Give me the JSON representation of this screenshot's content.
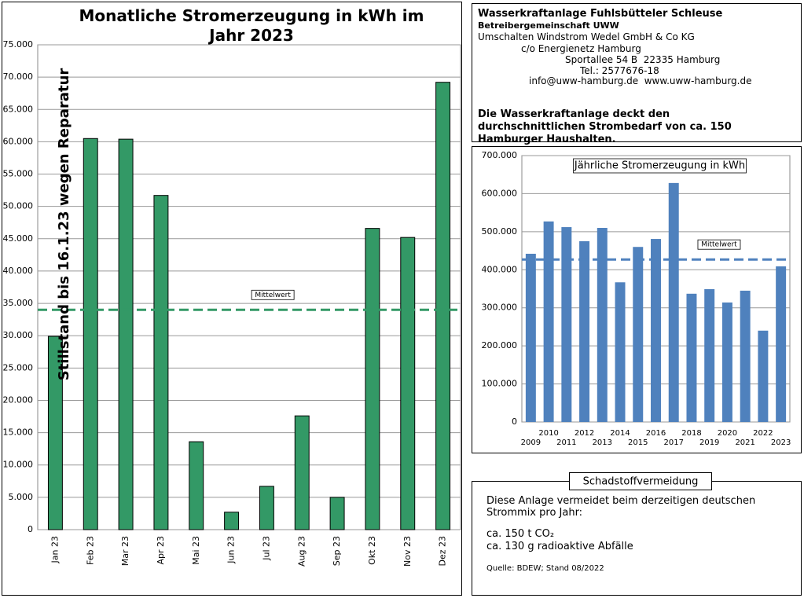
{
  "chart_data": [
    {
      "type": "bar",
      "title": "Monatliche Stromerzeugung in kWh im Jahr 2023",
      "categories": [
        "Jan 23",
        "Feb 23",
        "Mar 23",
        "Apr 23",
        "Mai 23",
        "Jun 23",
        "Jul 23",
        "Aug 23",
        "Sep 23",
        "Okt 23",
        "Nov 23",
        "Dez 23"
      ],
      "values": [
        29900,
        60500,
        60400,
        51700,
        13600,
        2700,
        6700,
        17600,
        5000,
        46600,
        45200,
        69200
      ],
      "color": "#339966",
      "ylim": [
        0,
        75000
      ],
      "yticks": [
        0,
        {
          "value": 5000,
          "label": "5.000"
        },
        {
          "value": 10000,
          "label": "10.000"
        },
        {
          "value": 15000,
          "label": "15.000"
        },
        {
          "value": 20000,
          "label": "20.000"
        },
        {
          "value": 25000,
          "label": "25.000"
        },
        {
          "value": 30000,
          "label": "30.000"
        },
        {
          "value": 35000,
          "label": "35.000"
        },
        {
          "value": 40000,
          "label": "40.000"
        },
        {
          "value": 45000,
          "label": "45.000"
        },
        {
          "value": 50000,
          "label": "50.000"
        },
        {
          "value": 55000,
          "label": "55.000"
        },
        {
          "value": 60000,
          "label": "60.000"
        },
        {
          "value": 65000,
          "label": "65.000"
        },
        {
          "value": 70000,
          "label": "70.000"
        },
        {
          "value": 75000,
          "label": "75.000"
        }
      ],
      "grid": true,
      "mean": {
        "value": 34000,
        "label": "Mittelwert"
      },
      "annotation": "Stillstand bis 16.1.23 wegen Reparatur"
    },
    {
      "type": "bar",
      "title": "Jährliche Stromerzeugung in kWh",
      "categories": [
        "2009",
        "2010",
        "2011",
        "2012",
        "2013",
        "2014",
        "2015",
        "2016",
        "2017",
        "2018",
        "2019",
        "2020",
        "2021",
        "2022",
        "2023"
      ],
      "values": [
        442000,
        527000,
        512000,
        475000,
        510000,
        367000,
        460000,
        481000,
        628000,
        337000,
        349000,
        314000,
        345000,
        240000,
        409000
      ],
      "color": "#4f81bd",
      "ylim": [
        0,
        700000
      ],
      "yticks": [
        0,
        {
          "value": 100000,
          "label": "100.000"
        },
        {
          "value": 200000,
          "label": "200.000"
        },
        {
          "value": 300000,
          "label": "300.000"
        },
        {
          "value": 400000,
          "label": "400.000"
        },
        {
          "value": 500000,
          "label": "500.000"
        },
        {
          "value": 600000,
          "label": "600.000"
        },
        {
          "value": 700000,
          "label": "700.000"
        }
      ],
      "grid": true,
      "mean": {
        "value": 427000,
        "label": "Mittelwert"
      }
    }
  ],
  "info": {
    "title": "Wasserkraftanlage Fuhlsbütteler Schleuse",
    "operator": "Betreibergemeinschaft UWW",
    "lines": [
      "Umschalten Windstrom Wedel GmbH & Co KG",
      "c/o Energienetz Hamburg",
      "Sportallee 54 B  22335 Hamburg",
      "Tel.: 2577676-18",
      "info@uww-hamburg.de  www.uww-hamburg.de"
    ],
    "statement": "Die Wasserkraftanlage deckt den durchschnittlichen Strombedarf von ca. 150 Hamburger Haushalten."
  },
  "emissions": {
    "title": "Schadstoffvermeidung",
    "text": "Diese Anlage vermeidet beim derzeitigen deutschen Strommix pro Jahr:",
    "items": [
      "ca. 150 t CO₂",
      "ca. 130 g radioaktive Abfälle"
    ],
    "source": "Quelle: BDEW; Stand 08/2022"
  }
}
